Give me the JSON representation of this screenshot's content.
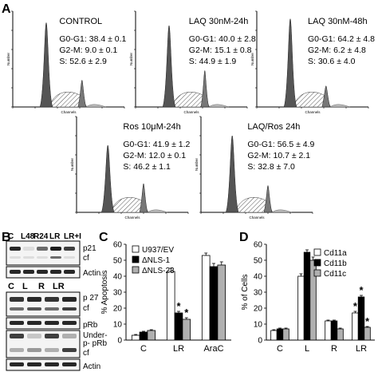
{
  "panel_labels": {
    "A": "A",
    "B": "B",
    "C": "C",
    "D": "D"
  },
  "flow_panels": [
    {
      "title": "CONTROL",
      "lines": [
        "G0-G1: 38.4 ± 0.1",
        "G2-M: 9.0 ± 0.1",
        "S: 52.6 ± 2.9"
      ]
    },
    {
      "title": "LAQ 30nM-24h",
      "lines": [
        "G0-G1: 40.0 ± 2.8",
        "G2-M: 15.1 ± 0.8",
        "S: 44.9 ± 1.9"
      ]
    },
    {
      "title": "LAQ 30nM-48h",
      "lines": [
        "G0-G1: 64.2 ± 4.8",
        "G2-M: 6.2 ± 4.8",
        "S: 30.6 ± 4.0"
      ]
    },
    {
      "title": "Ros 10μM-24h",
      "lines": [
        "G0-G1: 41.9 ± 1.2",
        "G2-M: 12.0 ± 0.1",
        "S: 46.2 ± 1.1"
      ]
    },
    {
      "title": "LAQ/Ros 24h",
      "lines": [
        "G0-G1: 56.5 ± 4.9",
        "G2-M: 10.7 ± 2.1",
        "S: 32.8 ± 7.0"
      ]
    }
  ],
  "flow_axis": {
    "xlabel": "Channels",
    "ylabel": "Number"
  },
  "blot": {
    "top_lanes": [
      "C",
      "L48",
      "R24",
      "LR",
      "LR+I"
    ],
    "top_rows": [
      "p21",
      "cf",
      "Actin"
    ],
    "bottom_lanes": [
      "C",
      "L",
      "R",
      "LR"
    ],
    "bottom_rows": [
      "p 27",
      "cf",
      "pRb",
      "Under-",
      "p- pRb",
      "cf",
      "Actin"
    ]
  },
  "chart_data": [
    {
      "type": "bar",
      "panel": "C",
      "ylabel": "% Apoptosis",
      "ylim": [
        0,
        60
      ],
      "yticks": [
        0,
        10,
        20,
        30,
        40,
        50,
        60
      ],
      "categories": [
        "C",
        "LR",
        "AraC"
      ],
      "series": [
        {
          "name": "U937/EV",
          "values": [
            3,
            43,
            53
          ],
          "errors": [
            0.5,
            2,
            1.5
          ],
          "color": "#ffffff"
        },
        {
          "name": "ΔNLS-1",
          "values": [
            5,
            17,
            46
          ],
          "errors": [
            0.5,
            1,
            2
          ],
          "color": "#000000"
        },
        {
          "name": "ΔNLS-23",
          "values": [
            6,
            13,
            47
          ],
          "errors": [
            0.5,
            1,
            2
          ],
          "color": "#b0b0b0"
        }
      ],
      "annotations": [
        "*",
        "*"
      ],
      "legend": "top-left"
    },
    {
      "type": "bar",
      "panel": "D",
      "ylabel": "% of Cells",
      "ylim": [
        0,
        60
      ],
      "yticks": [
        0,
        10,
        20,
        30,
        40,
        50,
        60
      ],
      "categories": [
        "C",
        "L",
        "R",
        "LR"
      ],
      "series": [
        {
          "name": "Cd11a",
          "values": [
            6,
            40,
            12,
            17
          ],
          "errors": [
            0.5,
            1.5,
            0.5,
            1
          ],
          "color": "#ffffff"
        },
        {
          "name": "Cd11b",
          "values": [
            7,
            55,
            12,
            27
          ],
          "errors": [
            0.5,
            1.5,
            0.5,
            1
          ],
          "color": "#000000"
        },
        {
          "name": "Cd11c",
          "values": [
            7,
            50,
            7,
            8
          ],
          "errors": [
            0.5,
            2,
            0.5,
            0.5
          ],
          "color": "#b0b0b0"
        }
      ],
      "annotations": [
        "*",
        "*",
        "*"
      ],
      "legend": "top-right"
    }
  ]
}
